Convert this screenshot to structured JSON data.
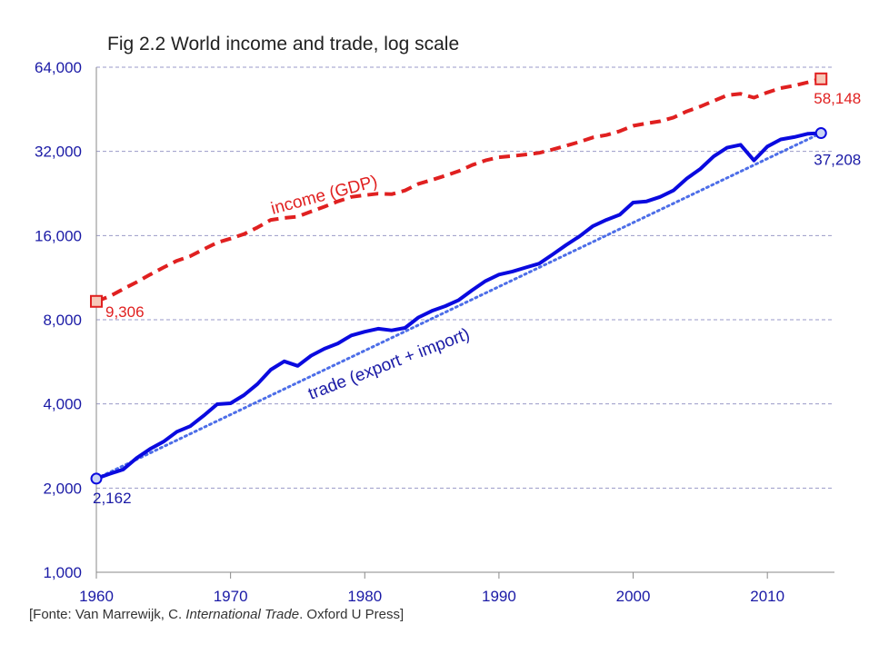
{
  "chart_data": {
    "type": "line",
    "title": "Fig 2.2 World income and trade, log scale",
    "yscale": "log",
    "ylim": [
      1000,
      64000
    ],
    "xlim": [
      1960,
      2015
    ],
    "y_ticks": [
      1000,
      2000,
      4000,
      8000,
      16000,
      32000,
      64000
    ],
    "y_tick_labels": [
      "1,000",
      "2,000",
      "4,000",
      "8,000",
      "16,000",
      "32,000",
      "64,000"
    ],
    "x_ticks": [
      1960,
      1970,
      1980,
      1990,
      2000,
      2010
    ],
    "x_tick_labels": [
      "1960",
      "1970",
      "1980",
      "1990",
      "2000",
      "2010"
    ],
    "grid": "horizontal-dashed",
    "series": [
      {
        "name": "income (GDP)",
        "color": "#e02020",
        "style": "dashed",
        "marker": "square",
        "end_labels": {
          "start": "9,306",
          "end": "58,148"
        },
        "points": [
          [
            1960,
            9306
          ],
          [
            1961,
            9700
          ],
          [
            1962,
            10300
          ],
          [
            1963,
            10900
          ],
          [
            1964,
            11600
          ],
          [
            1965,
            12300
          ],
          [
            1966,
            13000
          ],
          [
            1967,
            13500
          ],
          [
            1968,
            14300
          ],
          [
            1969,
            15100
          ],
          [
            1970,
            15600
          ],
          [
            1971,
            16200
          ],
          [
            1972,
            17100
          ],
          [
            1973,
            18200
          ],
          [
            1974,
            18500
          ],
          [
            1975,
            18700
          ],
          [
            1976,
            19500
          ],
          [
            1977,
            20300
          ],
          [
            1978,
            21200
          ],
          [
            1979,
            22000
          ],
          [
            1980,
            22300
          ],
          [
            1981,
            22600
          ],
          [
            1982,
            22500
          ],
          [
            1983,
            23200
          ],
          [
            1984,
            24500
          ],
          [
            1985,
            25300
          ],
          [
            1986,
            26200
          ],
          [
            1987,
            27200
          ],
          [
            1988,
            28600
          ],
          [
            1989,
            29700
          ],
          [
            1990,
            30500
          ],
          [
            1991,
            30800
          ],
          [
            1992,
            31200
          ],
          [
            1993,
            31600
          ],
          [
            1994,
            32500
          ],
          [
            1995,
            33500
          ],
          [
            1996,
            34600
          ],
          [
            1997,
            35900
          ],
          [
            1998,
            36600
          ],
          [
            1999,
            37800
          ],
          [
            2000,
            39500
          ],
          [
            2001,
            40300
          ],
          [
            2002,
            41000
          ],
          [
            2003,
            42300
          ],
          [
            2004,
            44500
          ],
          [
            2005,
            46300
          ],
          [
            2006,
            48500
          ],
          [
            2007,
            50800
          ],
          [
            2008,
            51400
          ],
          [
            2009,
            49800
          ],
          [
            2010,
            52000
          ],
          [
            2011,
            53900
          ],
          [
            2012,
            55000
          ],
          [
            2013,
            56500
          ],
          [
            2014,
            58148
          ]
        ]
      },
      {
        "name": "trade (export + import)",
        "color": "#0a0adf",
        "style": "solid",
        "marker": "circle",
        "end_labels": {
          "start": "2,162",
          "end": "37,208"
        },
        "points": [
          [
            1960,
            2162
          ],
          [
            1961,
            2250
          ],
          [
            1962,
            2330
          ],
          [
            1963,
            2560
          ],
          [
            1964,
            2760
          ],
          [
            1965,
            2930
          ],
          [
            1966,
            3180
          ],
          [
            1967,
            3330
          ],
          [
            1968,
            3630
          ],
          [
            1969,
            3990
          ],
          [
            1970,
            4020
          ],
          [
            1971,
            4300
          ],
          [
            1972,
            4710
          ],
          [
            1973,
            5300
          ],
          [
            1974,
            5680
          ],
          [
            1975,
            5470
          ],
          [
            1976,
            5950
          ],
          [
            1977,
            6300
          ],
          [
            1978,
            6580
          ],
          [
            1979,
            7030
          ],
          [
            1980,
            7250
          ],
          [
            1981,
            7430
          ],
          [
            1982,
            7330
          ],
          [
            1983,
            7480
          ],
          [
            1984,
            8150
          ],
          [
            1985,
            8600
          ],
          [
            1986,
            8950
          ],
          [
            1987,
            9400
          ],
          [
            1988,
            10200
          ],
          [
            1989,
            11000
          ],
          [
            1990,
            11600
          ],
          [
            1991,
            11900
          ],
          [
            1992,
            12300
          ],
          [
            1993,
            12700
          ],
          [
            1994,
            13700
          ],
          [
            1995,
            14800
          ],
          [
            1996,
            15900
          ],
          [
            1997,
            17300
          ],
          [
            1998,
            18200
          ],
          [
            1999,
            19000
          ],
          [
            2000,
            21000
          ],
          [
            2001,
            21200
          ],
          [
            2002,
            22000
          ],
          [
            2003,
            23200
          ],
          [
            2004,
            25600
          ],
          [
            2005,
            27700
          ],
          [
            2006,
            30700
          ],
          [
            2007,
            33000
          ],
          [
            2008,
            33800
          ],
          [
            2009,
            29700
          ],
          [
            2010,
            33300
          ],
          [
            2011,
            35300
          ],
          [
            2012,
            36000
          ],
          [
            2013,
            37000
          ],
          [
            2014,
            37208
          ]
        ]
      }
    ],
    "trend": {
      "series": "trade (export + import)",
      "style": "dotted",
      "color": "#4d6ee8",
      "from": [
        1960,
        2162
      ],
      "to": [
        2014,
        37208
      ]
    },
    "source_prefix": "[Fonte: Van Marrewijk, C. ",
    "source_italic": "International Trade",
    "source_suffix": ". Oxford U Press]"
  }
}
